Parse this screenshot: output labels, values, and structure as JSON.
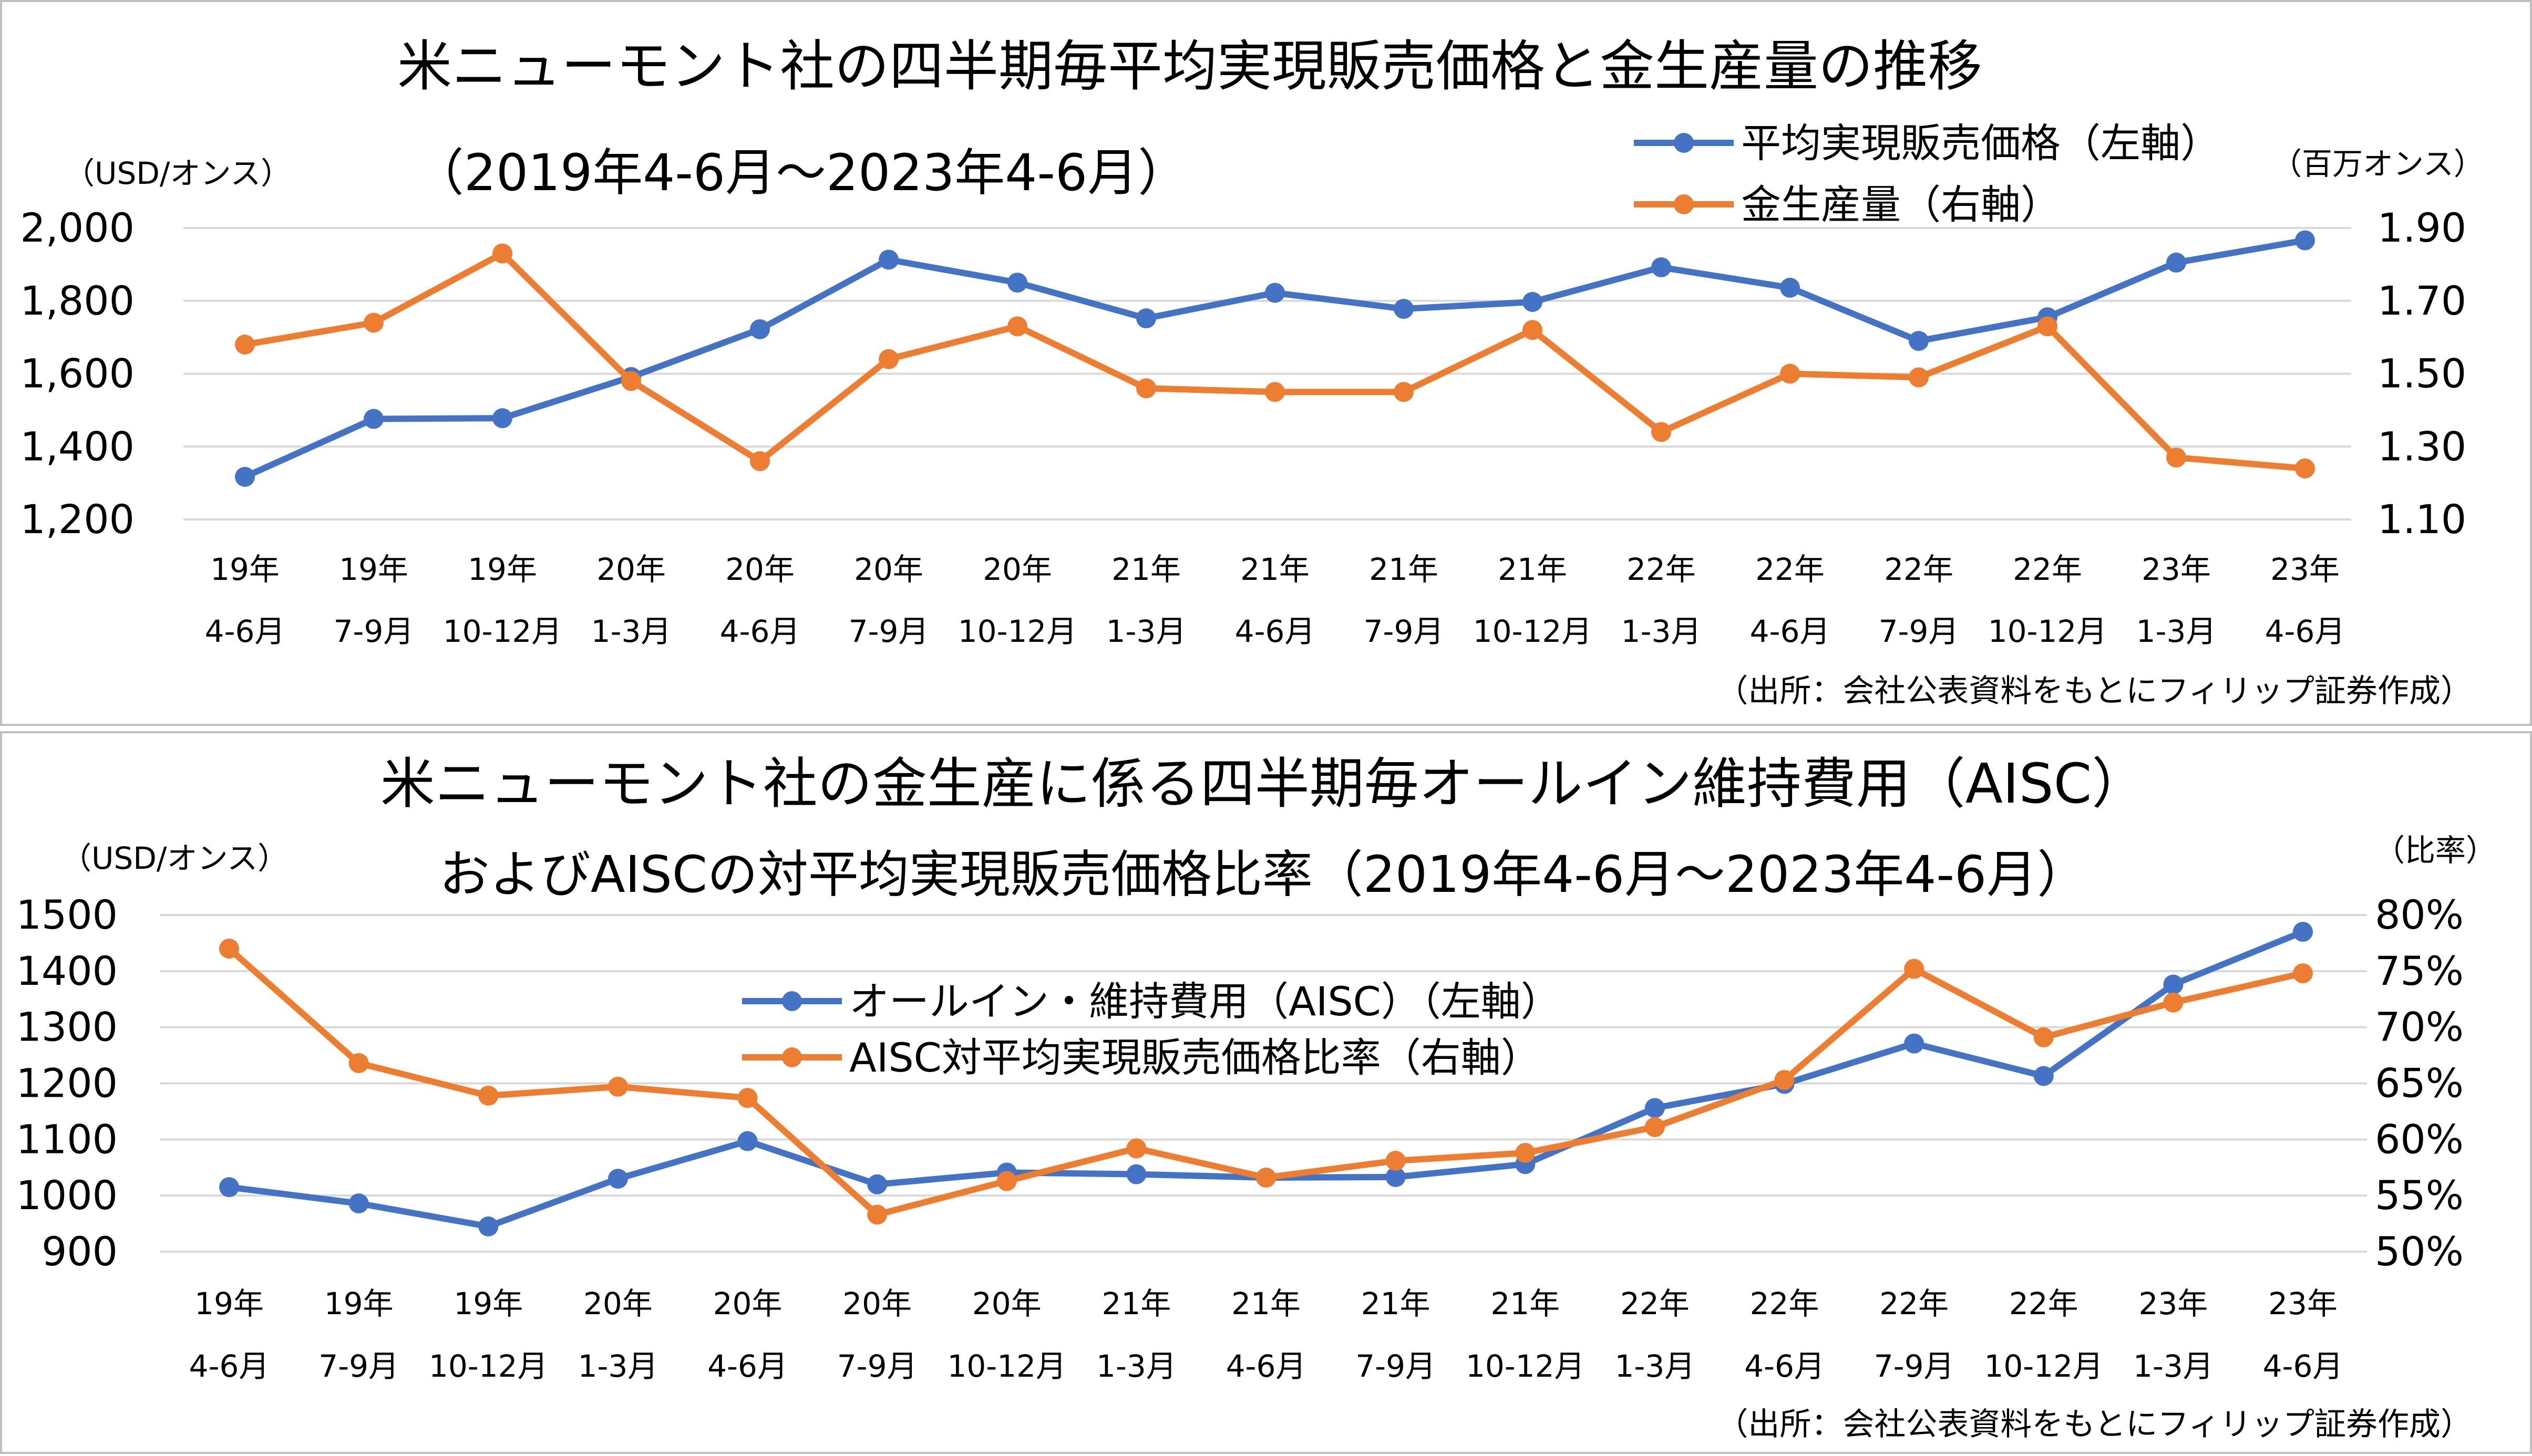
{
  "colors": {
    "blue": "#4472C4",
    "orange": "#ED7D31",
    "grid": "#d9d9d9"
  },
  "chart_data": [
    {
      "type": "line",
      "title": "米ニューモント社の四半期毎平均実現販売価格と金生産量の推移",
      "subtitle": "（2019年4-6月～2023年4-6月）",
      "y_left_unit": "（USD/オンス）",
      "y_right_unit": "（百万オンス）",
      "source": "（出所：会社公表資料をもとにフィリップ証券作成）",
      "categories": [
        [
          "19年",
          "4-6月"
        ],
        [
          "19年",
          "7-9月"
        ],
        [
          "19年",
          "10-12月"
        ],
        [
          "20年",
          "1-3月"
        ],
        [
          "20年",
          "4-6月"
        ],
        [
          "20年",
          "7-9月"
        ],
        [
          "20年",
          "10-12月"
        ],
        [
          "21年",
          "1-3月"
        ],
        [
          "21年",
          "4-6月"
        ],
        [
          "21年",
          "7-9月"
        ],
        [
          "21年",
          "10-12月"
        ],
        [
          "22年",
          "1-3月"
        ],
        [
          "22年",
          "4-6月"
        ],
        [
          "22年",
          "7-9月"
        ],
        [
          "22年",
          "10-12月"
        ],
        [
          "23年",
          "1-3月"
        ],
        [
          "23年",
          "4-6月"
        ]
      ],
      "y_left": {
        "min": 1200,
        "max": 2000,
        "ticks": [
          "1,200",
          "1,400",
          "1,600",
          "1,800",
          "2,000"
        ]
      },
      "y_right": {
        "min": 1.1,
        "max": 1.9,
        "ticks": [
          "1.10",
          "1.30",
          "1.50",
          "1.70",
          "1.90"
        ]
      },
      "series": [
        {
          "name": "平均実現販売価格（左軸）",
          "axis": "left",
          "color": "#4472C4",
          "values": [
            1317,
            1476,
            1478,
            1591,
            1722,
            1913,
            1850,
            1752,
            1822,
            1778,
            1797,
            1892,
            1836,
            1690,
            1755,
            1905,
            1966
          ]
        },
        {
          "name": "金生産量（右軸）",
          "axis": "right",
          "color": "#ED7D31",
          "values": [
            1.58,
            1.64,
            1.83,
            1.48,
            1.26,
            1.54,
            1.63,
            1.46,
            1.45,
            1.45,
            1.62,
            1.34,
            1.5,
            1.49,
            1.63,
            1.27,
            1.24
          ]
        }
      ]
    },
    {
      "type": "line",
      "title": "米ニューモント社の金生産に係る四半期毎オールイン維持費用（AISC）",
      "subtitle": "およびAISCの対平均実現販売価格比率（2019年4-6月～2023年4-6月）",
      "y_left_unit": "（USD/オンス）",
      "y_right_unit": "（比率）",
      "source": "（出所：会社公表資料をもとにフィリップ証券作成）",
      "categories": [
        [
          "19年",
          "4-6月"
        ],
        [
          "19年",
          "7-9月"
        ],
        [
          "19年",
          "10-12月"
        ],
        [
          "20年",
          "1-3月"
        ],
        [
          "20年",
          "4-6月"
        ],
        [
          "20年",
          "7-9月"
        ],
        [
          "20年",
          "10-12月"
        ],
        [
          "21年",
          "1-3月"
        ],
        [
          "21年",
          "4-6月"
        ],
        [
          "21年",
          "7-9月"
        ],
        [
          "21年",
          "10-12月"
        ],
        [
          "22年",
          "1-3月"
        ],
        [
          "22年",
          "4-6月"
        ],
        [
          "22年",
          "7-9月"
        ],
        [
          "22年",
          "10-12月"
        ],
        [
          "23年",
          "1-3月"
        ],
        [
          "23年",
          "4-6月"
        ]
      ],
      "y_left": {
        "min": 900,
        "max": 1500,
        "ticks": [
          "900",
          "1000",
          "1100",
          "1200",
          "1300",
          "1400",
          "1500"
        ]
      },
      "y_right": {
        "min": 50,
        "max": 80,
        "ticks": [
          "50%",
          "55%",
          "60%",
          "65%",
          "70%",
          "75%",
          "80%"
        ]
      },
      "series": [
        {
          "name": "オールイン・維持費用（AISC）（左軸）",
          "axis": "left",
          "color": "#4472C4",
          "values": [
            1015,
            986,
            945,
            1030,
            1097,
            1020,
            1041,
            1038,
            1032,
            1033,
            1056,
            1156,
            1199,
            1271,
            1213,
            1376,
            1470
          ]
        },
        {
          "name": "AISC対平均実現販売価格比率（右軸）",
          "axis": "right",
          "color": "#ED7D31",
          "values": [
            77.0,
            66.8,
            63.9,
            64.7,
            63.7,
            53.3,
            56.3,
            59.2,
            56.6,
            58.1,
            58.8,
            61.1,
            65.3,
            75.2,
            69.1,
            72.2,
            74.8
          ]
        }
      ]
    }
  ]
}
